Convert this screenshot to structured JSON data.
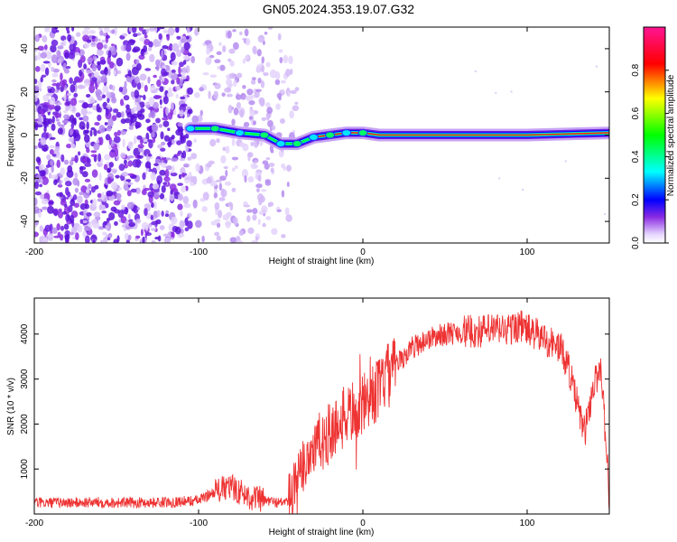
{
  "title": "GN05.2024.353.19.07.G32",
  "chart_data": [
    {
      "type": "heatmap",
      "xlabel": "Height of straight line (km)",
      "ylabel": "Frequency (Hz)",
      "xlim": [
        -200,
        150
      ],
      "ylim": [
        -50,
        50
      ],
      "xticks": [
        -200,
        -100,
        0,
        100
      ],
      "yticks": [
        -40,
        -20,
        0,
        20,
        40
      ],
      "colorbar": {
        "label": "Normalized spectral amplitude",
        "range": [
          0,
          1
        ],
        "ticks": [
          "0.0",
          "0.2",
          "0.4",
          "0.6",
          "0.8"
        ],
        "colors": [
          "#ffffff",
          "#8a2be2",
          "#0000ff",
          "#00ffff",
          "#00ff00",
          "#ffff00",
          "#ff0000",
          "#ff1493"
        ]
      },
      "ridge": [
        {
          "x": -105,
          "y": 3
        },
        {
          "x": -90,
          "y": 3
        },
        {
          "x": -75,
          "y": 1
        },
        {
          "x": -60,
          "y": 0
        },
        {
          "x": -50,
          "y": -4
        },
        {
          "x": -40,
          "y": -4
        },
        {
          "x": -30,
          "y": -1
        },
        {
          "x": -20,
          "y": 0
        },
        {
          "x": -10,
          "y": 1
        },
        {
          "x": 0,
          "y": 1
        },
        {
          "x": 10,
          "y": 0
        },
        {
          "x": 50,
          "y": 0
        },
        {
          "x": 100,
          "y": 0
        },
        {
          "x": 150,
          "y": 1
        }
      ]
    },
    {
      "type": "line",
      "xlabel": "Height of straight line (km)",
      "ylabel": "SNR (10 * v/v)",
      "xlim": [
        -200,
        150
      ],
      "ylim": [
        0,
        4800
      ],
      "xticks": [
        -200,
        -100,
        0,
        100
      ],
      "yticks": [
        1000,
        2000,
        3000,
        4000
      ],
      "color": "#ee3333",
      "series": [
        {
          "x": [
            -200,
            -180,
            -160,
            -140,
            -120,
            -100,
            -90,
            -80,
            -70,
            -60,
            -50,
            -45,
            -40,
            -35,
            -30,
            -25,
            -20,
            -15,
            -10,
            -5,
            0,
            5,
            10,
            15,
            20,
            25,
            30,
            40,
            50,
            60,
            70,
            80,
            90,
            95,
            100,
            105,
            110,
            115,
            120,
            125,
            130,
            135,
            140,
            145,
            150
          ],
          "y": [
            250,
            250,
            260,
            250,
            260,
            300,
            500,
            600,
            400,
            300,
            250,
            300,
            600,
            1200,
            1500,
            1600,
            1800,
            2000,
            2200,
            2300,
            2400,
            2600,
            2800,
            3100,
            3300,
            3500,
            3700,
            3900,
            4000,
            4050,
            4050,
            4100,
            4100,
            4200,
            4100,
            4000,
            3900,
            3800,
            3700,
            3300,
            2500,
            1800,
            2800,
            3300,
            400
          ]
        }
      ]
    }
  ]
}
